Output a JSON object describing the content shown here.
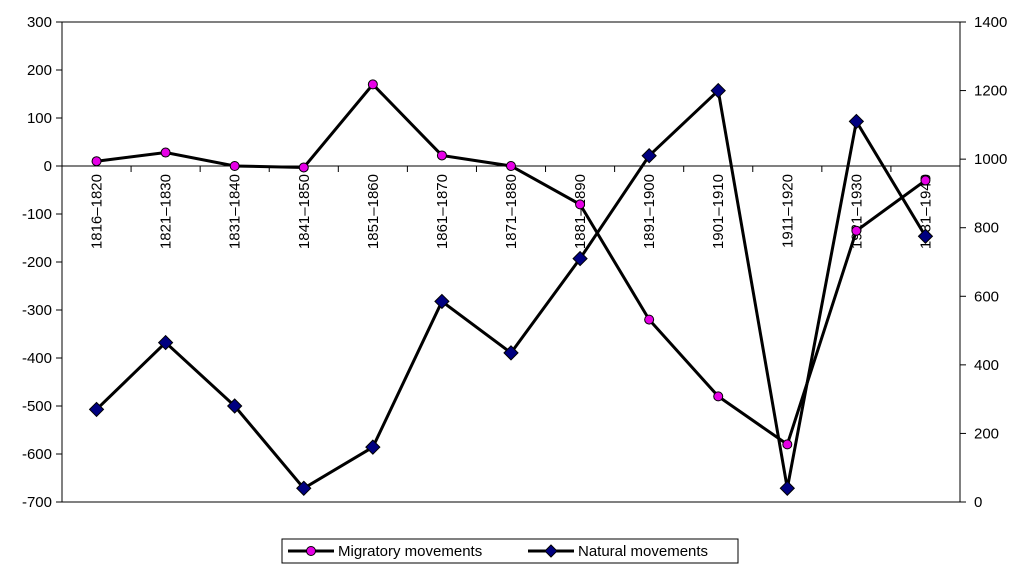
{
  "chart_data": {
    "type": "line",
    "categories": [
      "1816–1820",
      "1821–1830",
      "1831–1840",
      "1841–1850",
      "1851–1860",
      "1861–1870",
      "1871–1880",
      "1881–1890",
      "1891–1900",
      "1901–1910",
      "1911–1920",
      "1921–1930",
      "1931–1940"
    ],
    "y_left": {
      "min": -700,
      "max": 300,
      "step": 100,
      "ticks": [
        300,
        200,
        100,
        0,
        -100,
        -200,
        -300,
        -400,
        -500,
        -600,
        -700
      ]
    },
    "y_right": {
      "min": 0,
      "max": 1400,
      "step": 200,
      "ticks": [
        1400,
        1200,
        1000,
        800,
        600,
        400,
        200,
        0
      ]
    },
    "series": [
      {
        "name": "Migratory movements",
        "axis": "left",
        "marker": "circle",
        "marker_color": "#e600e6",
        "line_color": "#000000",
        "values": [
          10,
          28,
          0,
          -3,
          170,
          22,
          0,
          -80,
          -320,
          -480,
          -580,
          -135,
          -30
        ]
      },
      {
        "name": "Natural movements",
        "axis": "right",
        "marker": "diamond",
        "marker_color": "#000080",
        "line_color": "#000000",
        "values": [
          270,
          465,
          280,
          40,
          160,
          585,
          435,
          710,
          1010,
          1200,
          40,
          1110,
          775
        ]
      }
    ],
    "grid": false,
    "legend_position": "bottom"
  }
}
